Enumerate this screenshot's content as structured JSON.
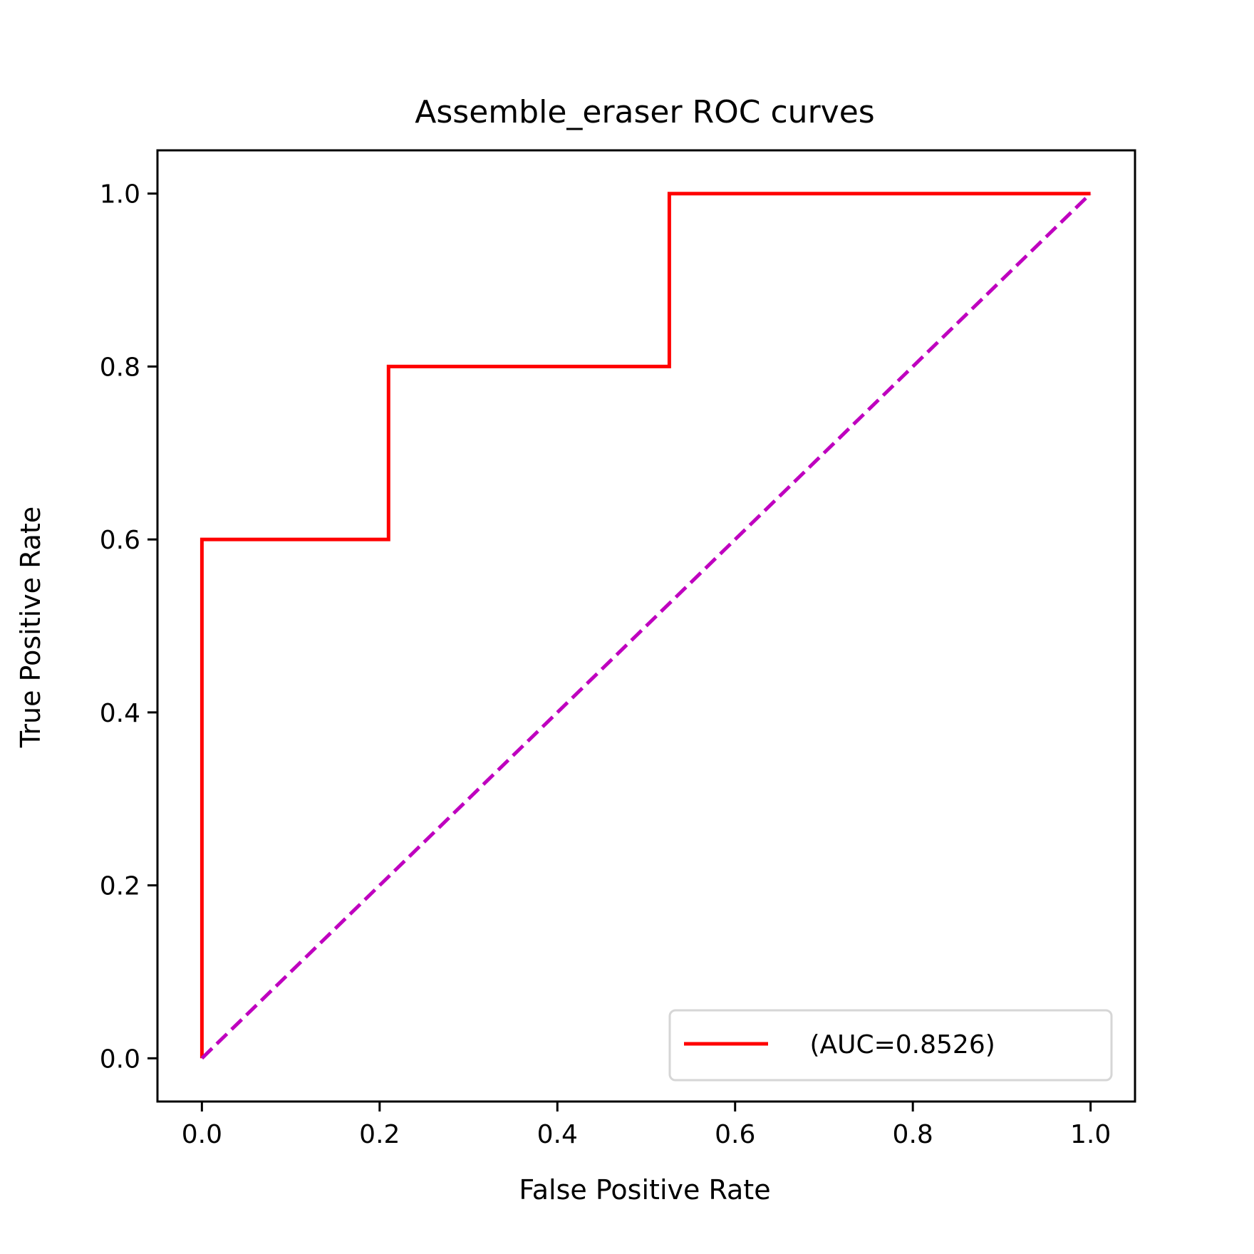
{
  "chart_data": {
    "type": "line",
    "title": "Assemble_eraser ROC curves",
    "xlabel": "False Positive Rate",
    "ylabel": "True Positive Rate",
    "xlim": [
      -0.05,
      1.05
    ],
    "ylim": [
      -0.05,
      1.05
    ],
    "xticks": [
      "0.0",
      "0.2",
      "0.4",
      "0.6",
      "0.8",
      "1.0"
    ],
    "yticks": [
      "0.0",
      "0.2",
      "0.4",
      "0.6",
      "0.8",
      "1.0"
    ],
    "grid": false,
    "legend_position": "lower-right",
    "series": [
      {
        "name": " (AUC=0.8526)",
        "color": "#ff0000",
        "style": "solid",
        "x": [
          0.0,
          0.0,
          0.21,
          0.21,
          0.526,
          0.526,
          1.0
        ],
        "y": [
          0.0,
          0.6,
          0.6,
          0.8,
          0.8,
          1.0,
          1.0
        ]
      },
      {
        "color": "#bf00bf",
        "style": "dashed",
        "x": [
          0.0,
          1.0
        ],
        "y": [
          0.0,
          1.0
        ]
      }
    ]
  }
}
